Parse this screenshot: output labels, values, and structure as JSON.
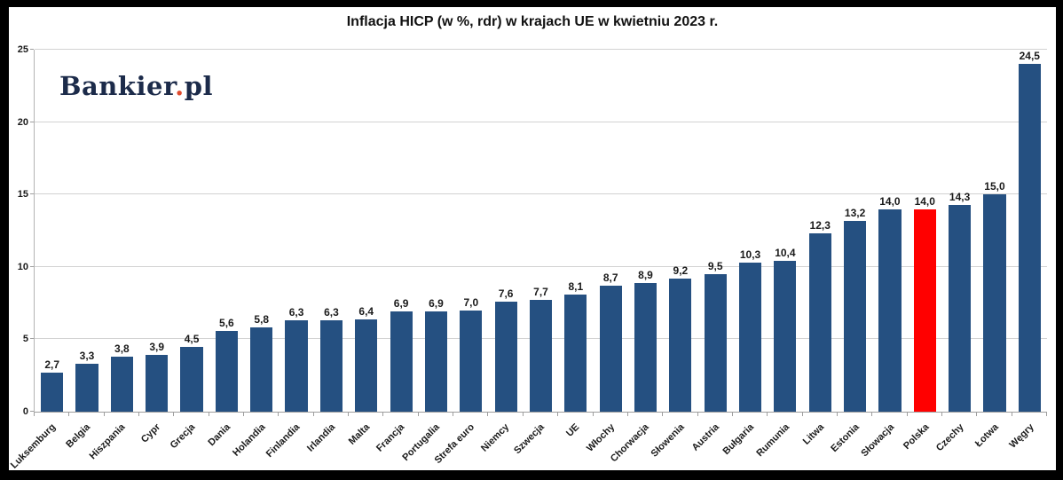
{
  "title": "Inflacja HICP (w %, rdr) w krajach UE w kwietniu 2023 r.",
  "logo": {
    "text_main": "Bankier",
    "text_dot": ".",
    "text_suffix": "pl"
  },
  "colors": {
    "bar": "#255081",
    "highlight_bar": "#ff0000",
    "grid": "#d2d2d2",
    "axis": "#9e9e9e",
    "logo_navy": "#1c2b4a",
    "logo_dot": "#e04b2e",
    "background": "#ffffff",
    "frame": "#000000"
  },
  "chart_data": {
    "type": "bar",
    "title": "Inflacja HICP (w %, rdr) w krajach UE w kwietniu 2023 r.",
    "xlabel": "",
    "ylabel": "",
    "ylim": [
      0,
      25
    ],
    "yticks": [
      0,
      5,
      10,
      15,
      20,
      25
    ],
    "grid": true,
    "legend": null,
    "categories": [
      "Luksemburg",
      "Belgia",
      "Hiszpania",
      "Cypr",
      "Grecja",
      "Dania",
      "Holandia",
      "Finlandia",
      "Irlandia",
      "Malta",
      "Francja",
      "Portugalia",
      "Strefa euro",
      "Niemcy",
      "Szwecja",
      "UE",
      "Włochy",
      "Chorwacja",
      "Słowenia",
      "Austria",
      "Bułgaria",
      "Rumunia",
      "Litwa",
      "Estonia",
      "Słowacja",
      "Polska",
      "Czechy",
      "Łotwa",
      "Węgry"
    ],
    "values": [
      2.7,
      3.3,
      3.8,
      3.9,
      4.5,
      5.6,
      5.8,
      6.3,
      6.3,
      6.4,
      6.9,
      6.9,
      7.0,
      7.6,
      7.7,
      8.1,
      8.7,
      8.9,
      9.2,
      9.5,
      10.3,
      10.4,
      12.3,
      13.2,
      14.0,
      14.0,
      14.3,
      15.0,
      24.5
    ],
    "value_labels": [
      "2,7",
      "3,3",
      "3,8",
      "3,9",
      "4,5",
      "5,6",
      "5,8",
      "6,3",
      "6,3",
      "6,4",
      "6,9",
      "6,9",
      "7,0",
      "7,6",
      "7,7",
      "8,1",
      "8,7",
      "8,9",
      "9,2",
      "9,5",
      "10,3",
      "10,4",
      "12,3",
      "13,2",
      "14,0",
      "14,0",
      "14,3",
      "15,0",
      "24,5"
    ],
    "highlight_category": "Polska",
    "highlight_index": 25
  }
}
